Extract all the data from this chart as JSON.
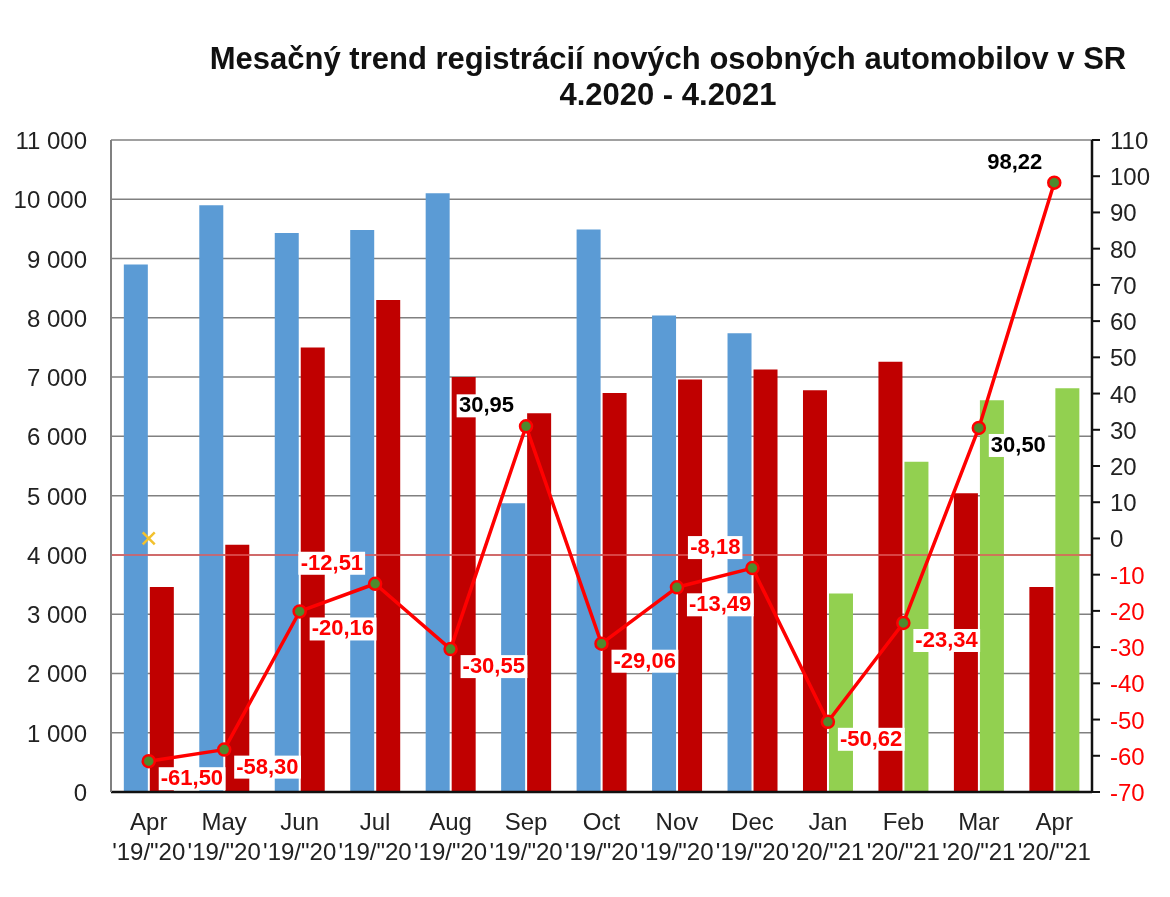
{
  "chart_data": {
    "type": "bar",
    "title": "Mesačný trend registrácií nových osobných automobilov v SR",
    "subtitle": "4.2020 - 4.2021",
    "categories": [
      "Apr '19/\"20",
      "May '19/\"20",
      "Jun '19/\"20",
      "Jul '19/\"20",
      "Aug '19/\"20",
      "Sep '19/\"20",
      "Oct '19/\"20",
      "Nov '19/\"20",
      "Dec '19/\"20",
      "Jan '20/\"21",
      "Feb '20/\"21",
      "Mar '20/\"21",
      "Apr '20/\"21"
    ],
    "series": [
      {
        "type": "bar",
        "values": [
          8900,
          9900,
          9430,
          9480,
          10100,
          4870,
          9490,
          8040,
          7740,
          6780,
          7260,
          5040,
          3460
        ],
        "colors": [
          "#5b9bd5",
          "#5b9bd5",
          "#5b9bd5",
          "#5b9bd5",
          "#5b9bd5",
          "#5b9bd5",
          "#5b9bd5",
          "#5b9bd5",
          "#5b9bd5",
          "#c00000",
          "#c00000",
          "#c00000",
          "#c00000"
        ]
      },
      {
        "type": "bar",
        "values": [
          3460,
          4170,
          7500,
          8300,
          7000,
          6390,
          6730,
          6960,
          7130,
          3350,
          5570,
          6610,
          6810
        ],
        "colors": [
          "#c00000",
          "#c00000",
          "#c00000",
          "#c00000",
          "#c00000",
          "#c00000",
          "#c00000",
          "#c00000",
          "#c00000",
          "#92d050",
          "#92d050",
          "#92d050",
          "#92d050"
        ]
      },
      {
        "type": "line",
        "axis": "y2",
        "color": "#ff0000",
        "marker": "circle",
        "values": [
          -61.5,
          -58.3,
          -20.16,
          -12.51,
          -30.55,
          30.95,
          -29.06,
          -13.49,
          -8.18,
          -50.62,
          -23.34,
          30.5,
          98.22
        ],
        "value_labels": [
          "-61,50",
          "-58,30",
          "-20,16",
          "-12,51",
          "-30,55",
          "30,95",
          "-29,06",
          "-13,49",
          "-8,18",
          "-50,62",
          "-23,34",
          "30,50",
          "98,22"
        ]
      },
      {
        "type": "scatter",
        "axis": "y2",
        "color": "#f2c12e",
        "marker": "cross",
        "values": [
          0,
          null,
          null,
          null,
          null,
          null,
          null,
          null,
          null,
          null,
          null,
          null,
          null
        ]
      }
    ],
    "ylim": [
      0,
      11000
    ],
    "yticks": [
      0,
      {
        "value": 1000,
        "label": "1 000"
      },
      {
        "value": 2000,
        "label": "2 000"
      },
      {
        "value": 3000,
        "label": "3 000"
      },
      {
        "value": 4000,
        "label": "4 000"
      },
      {
        "value": 5000,
        "label": "5 000"
      },
      {
        "value": 6000,
        "label": "6 000"
      },
      {
        "value": 7000,
        "label": "7 000"
      },
      {
        "value": 8000,
        "label": "8 000"
      },
      {
        "value": 9000,
        "label": "9 000"
      },
      {
        "value": 10000,
        "label": "10 000"
      },
      {
        "value": 11000,
        "label": "11 000"
      }
    ],
    "y2lim": [
      -70,
      110
    ],
    "y2ticks": [
      -70,
      -60,
      -50,
      -40,
      -30,
      -20,
      -10,
      0,
      10,
      20,
      30,
      40,
      50,
      60,
      70,
      80,
      90,
      100,
      110
    ],
    "ref_lines": [
      {
        "axis": "y",
        "value": 4000,
        "color": "#e05a5a"
      }
    ],
    "grid": "y"
  }
}
